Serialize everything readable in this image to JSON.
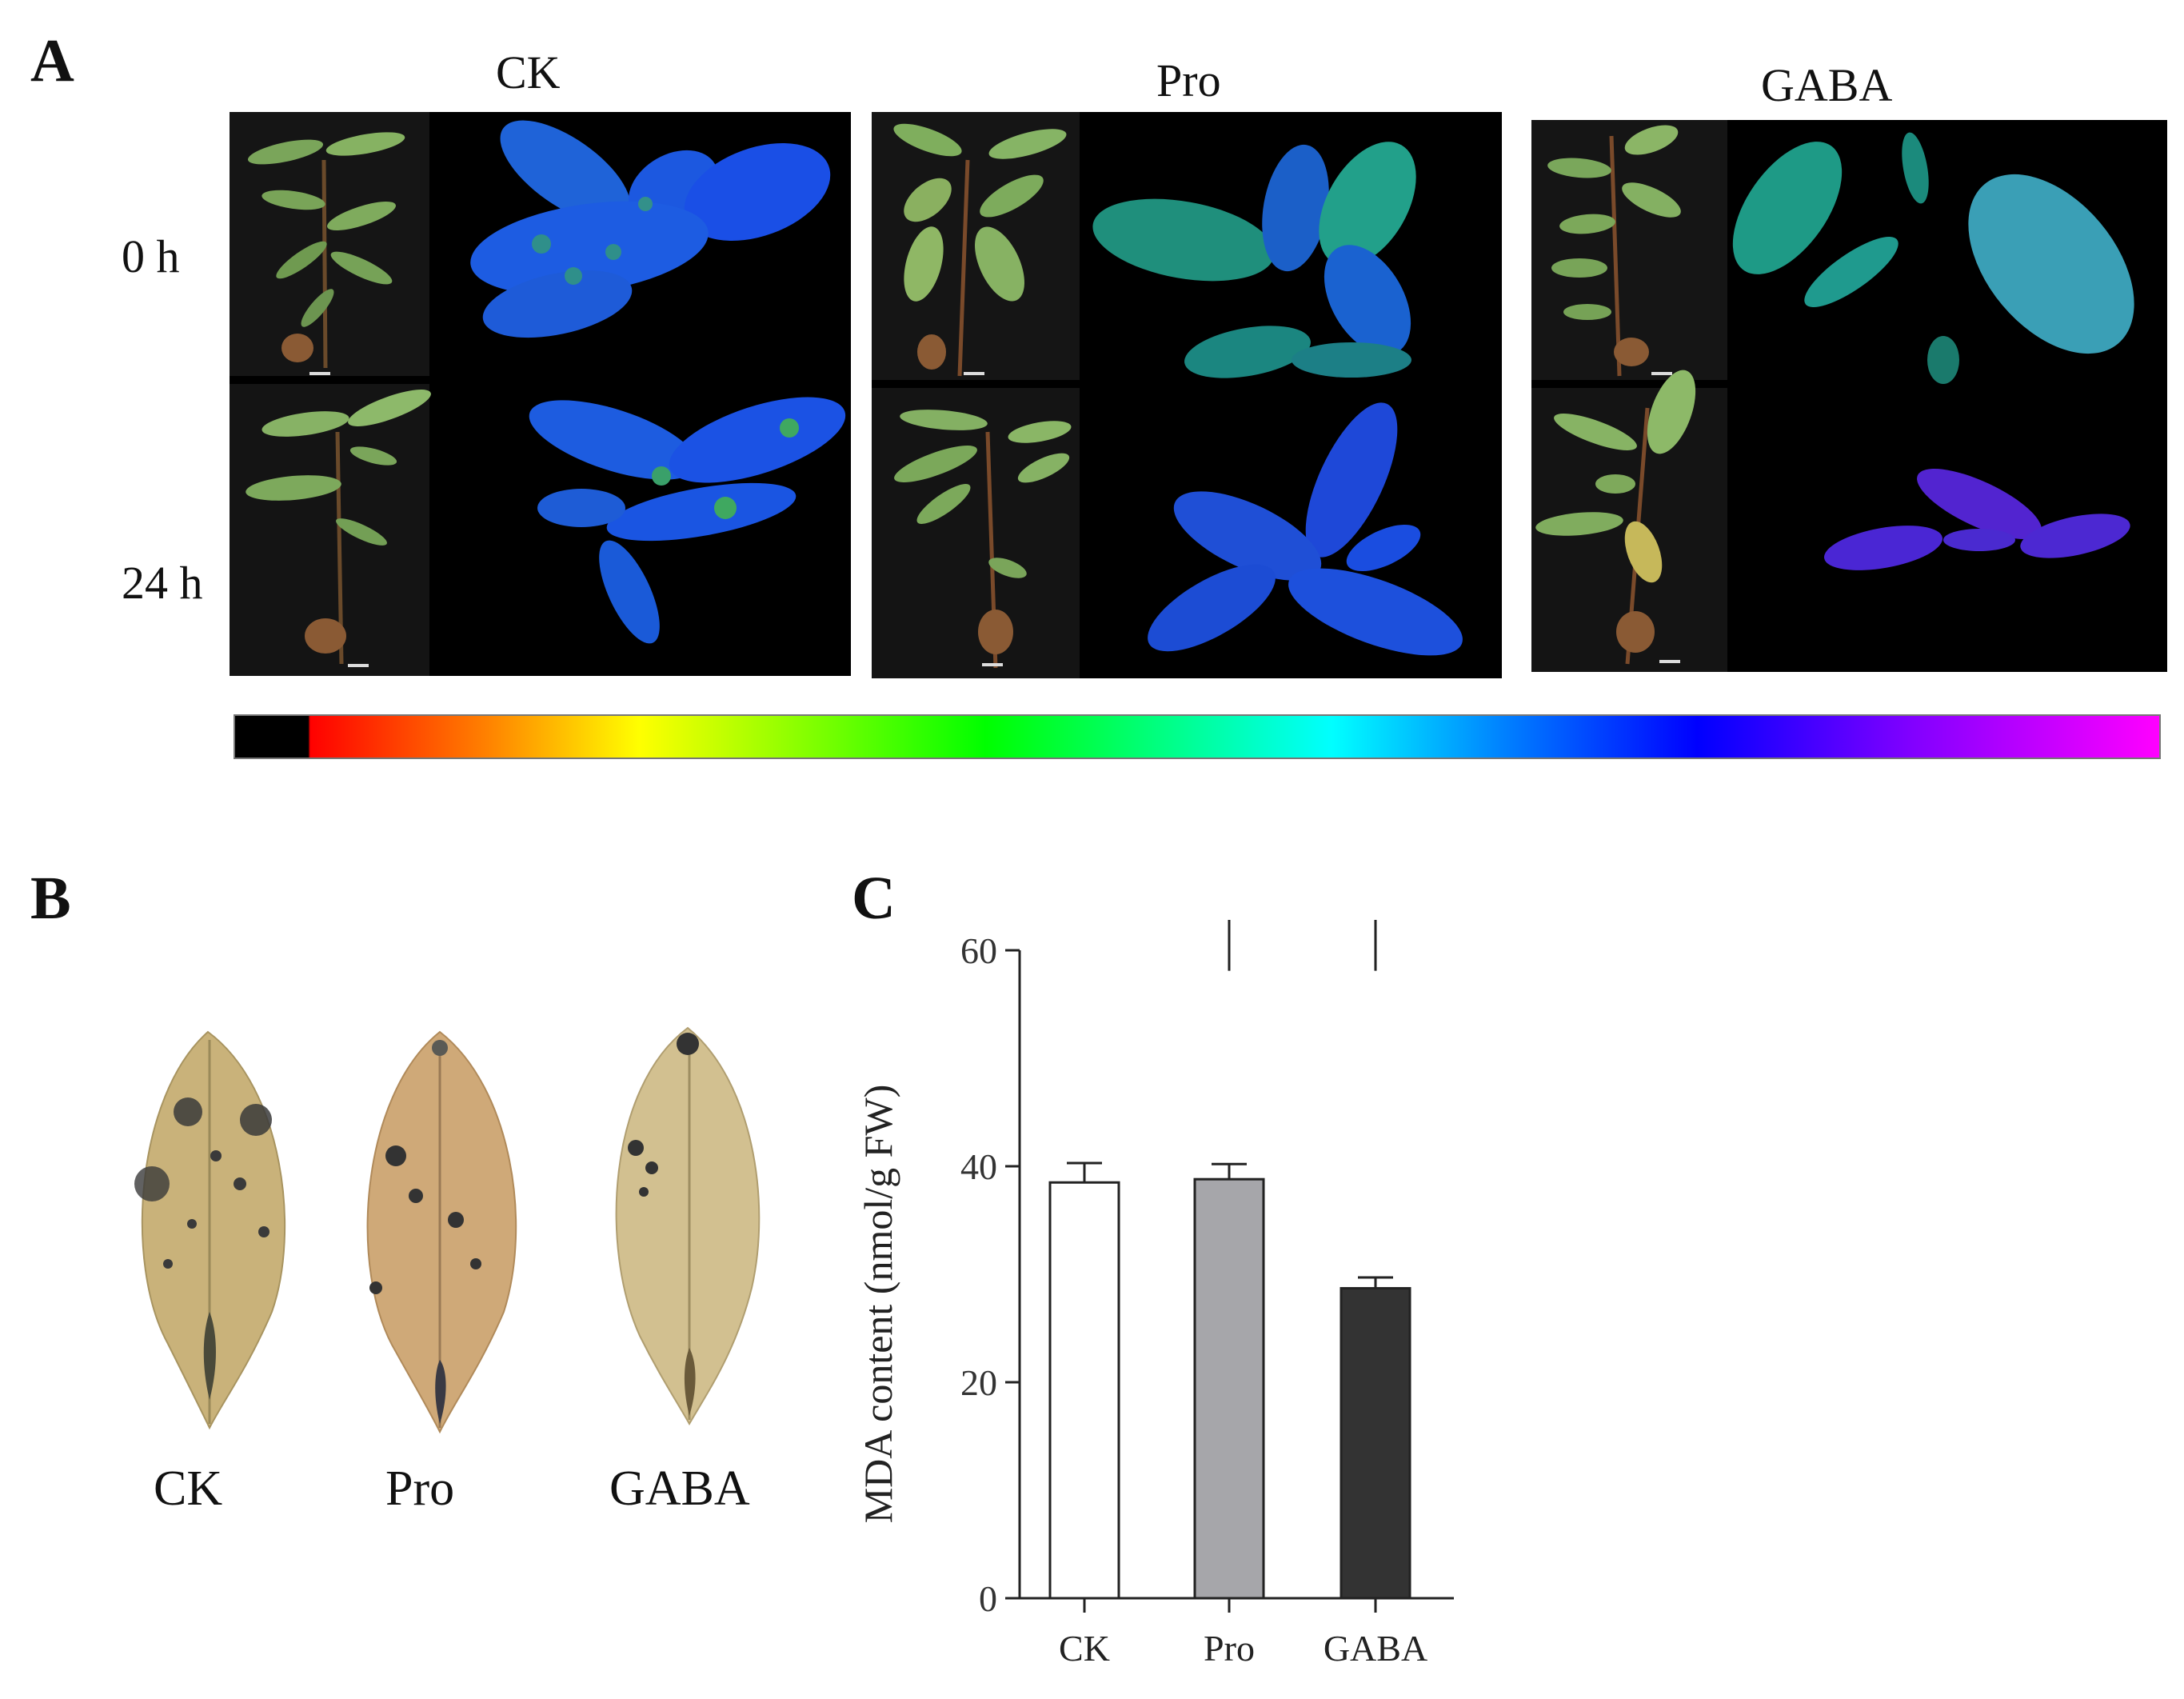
{
  "panels": {
    "a": {
      "letter": "A",
      "groups": [
        "CK",
        "Pro",
        "GABA"
      ],
      "rows": [
        "0 h",
        "24 h"
      ]
    },
    "b": {
      "letter": "B",
      "leaves": [
        "CK",
        "Pro",
        "GABA"
      ]
    },
    "c": {
      "letter": "C"
    }
  },
  "colors": {
    "ck_bar": "#ffffff",
    "pro_bar": "#a6a6aa",
    "gaba_bar": "#333333"
  },
  "chart_data": {
    "type": "bar",
    "categories": [
      "CK",
      "Pro",
      "GABA"
    ],
    "values": [
      38.5,
      38.8,
      28.7
    ],
    "errors": [
      1.8,
      1.4,
      1.0
    ],
    "ylabel": "MDA content (nmol/g FW)",
    "ylim": [
      0,
      60
    ],
    "yticks": [
      0,
      20,
      40,
      60
    ],
    "significance": [
      {
        "from": "CK",
        "to": "GABA",
        "label": "*"
      },
      {
        "from": "Pro",
        "to": "GABA",
        "label": "*"
      }
    ]
  }
}
